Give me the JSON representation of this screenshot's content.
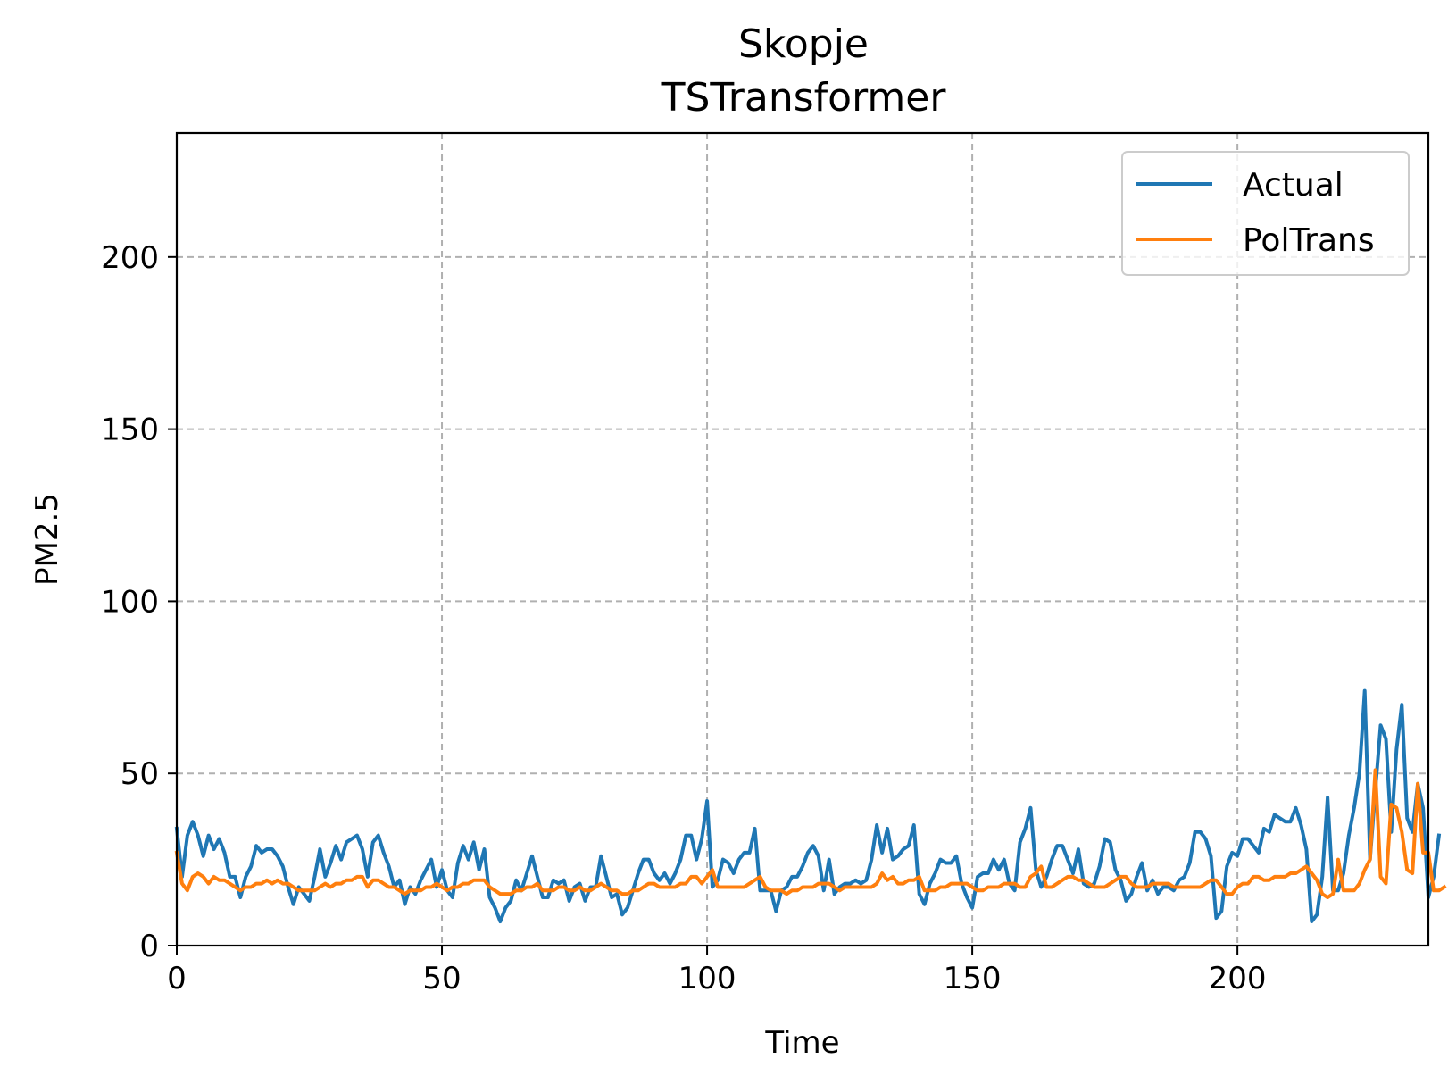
{
  "chart_data": {
    "type": "line",
    "title": "Skopje",
    "subtitle": "TSTransformer",
    "xlabel": "Time",
    "ylabel": "PM2.5",
    "xlim": [
      0,
      236
    ],
    "ylim": [
      0,
      236
    ],
    "xticks": [
      0,
      50,
      100,
      150,
      200
    ],
    "yticks": [
      0,
      50,
      100,
      150,
      200
    ],
    "grid": true,
    "legend_position": "top-right",
    "series": [
      {
        "name": "Actual",
        "color": "#1f77b4",
        "values": [
          34,
          20,
          32,
          36,
          32,
          26,
          32,
          28,
          31,
          27,
          20,
          20,
          14,
          20,
          23,
          29,
          27,
          28,
          28,
          26,
          23,
          17,
          12,
          17,
          15,
          13,
          20,
          28,
          20,
          24,
          29,
          25,
          30,
          31,
          32,
          28,
          20,
          30,
          32,
          27,
          23,
          17,
          19,
          12,
          17,
          15,
          19,
          22,
          25,
          17,
          22,
          16,
          14,
          24,
          29,
          25,
          30,
          22,
          28,
          14,
          11,
          7,
          11,
          13,
          19,
          16,
          21,
          26,
          20,
          14,
          14,
          19,
          18,
          19,
          13,
          17,
          18,
          13,
          17,
          17,
          26,
          20,
          14,
          15,
          9,
          11,
          16,
          21,
          25,
          25,
          21,
          19,
          21,
          18,
          21,
          25,
          32,
          32,
          25,
          31,
          42,
          17,
          19,
          25,
          24,
          21,
          25,
          27,
          27,
          34,
          16,
          16,
          16,
          10,
          16,
          17,
          20,
          20,
          23,
          27,
          29,
          26,
          16,
          25,
          15,
          17,
          18,
          18,
          19,
          18,
          19,
          25,
          35,
          27,
          34,
          25,
          26,
          28,
          29,
          35,
          15,
          12,
          18,
          21,
          25,
          24,
          24,
          26,
          18,
          14,
          11,
          20,
          21,
          21,
          25,
          22,
          25,
          18,
          16,
          30,
          34,
          40,
          22,
          17,
          20,
          25,
          29,
          29,
          25,
          21,
          28,
          18,
          17,
          18,
          23,
          31,
          30,
          22,
          19,
          13,
          15,
          20,
          24,
          16,
          19,
          15,
          17,
          17,
          16,
          19,
          20,
          24,
          33,
          33,
          31,
          26,
          8,
          10,
          23,
          27,
          26,
          31,
          31,
          29,
          27,
          34,
          33,
          38,
          37,
          36,
          36,
          40,
          35,
          28,
          7,
          9,
          20,
          43,
          16,
          16,
          21,
          32,
          40,
          50,
          74,
          25,
          45,
          64,
          60,
          33,
          57,
          70,
          37,
          33,
          47,
          40,
          14,
          20,
          32
        ]
      },
      {
        "name": "PolTrans",
        "color": "#ff7f0e",
        "values": [
          27,
          18,
          16,
          20,
          21,
          20,
          18,
          20,
          19,
          19,
          18,
          17,
          16,
          17,
          17,
          18,
          18,
          19,
          18,
          19,
          18,
          18,
          17,
          16,
          16,
          16,
          16,
          17,
          18,
          17,
          18,
          18,
          19,
          19,
          20,
          20,
          17,
          19,
          19,
          18,
          17,
          17,
          16,
          15,
          16,
          16,
          16,
          17,
          17,
          18,
          17,
          16,
          17,
          17,
          18,
          18,
          19,
          19,
          19,
          17,
          16,
          15,
          15,
          15,
          16,
          16,
          17,
          17,
          18,
          16,
          16,
          16,
          17,
          17,
          16,
          16,
          17,
          16,
          16,
          17,
          18,
          17,
          16,
          16,
          15,
          15,
          16,
          16,
          17,
          18,
          18,
          17,
          17,
          17,
          17,
          18,
          18,
          20,
          20,
          18,
          20,
          22,
          17,
          17,
          17,
          17,
          17,
          17,
          18,
          19,
          20,
          17,
          16,
          16,
          16,
          15,
          16,
          16,
          17,
          17,
          17,
          18,
          18,
          18,
          17,
          16,
          17,
          17,
          17,
          17,
          17,
          17,
          18,
          21,
          19,
          20,
          18,
          18,
          19,
          19,
          20,
          16,
          16,
          16,
          17,
          17,
          18,
          18,
          18,
          18,
          17,
          16,
          16,
          17,
          17,
          17,
          18,
          18,
          18,
          17,
          17,
          20,
          21,
          23,
          17,
          17,
          18,
          19,
          20,
          20,
          19,
          19,
          18,
          17,
          17,
          17,
          18,
          19,
          20,
          20,
          18,
          17,
          17,
          17,
          18,
          18,
          18,
          18,
          17,
          17,
          17,
          17,
          17,
          17,
          18,
          19,
          19,
          17,
          15,
          15,
          17,
          18,
          18,
          20,
          20,
          19,
          19,
          20,
          20,
          20,
          21,
          21,
          22,
          23,
          21,
          19,
          15,
          14,
          15,
          25,
          16,
          16,
          16,
          18,
          22,
          25,
          51,
          20,
          18,
          41,
          40,
          33,
          22,
          21,
          47,
          27,
          27,
          16,
          16,
          17
        ]
      }
    ]
  }
}
